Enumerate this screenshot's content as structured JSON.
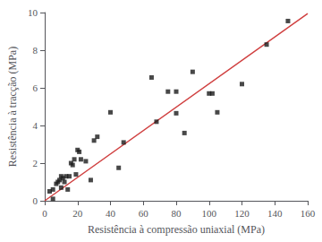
{
  "chart_data": {
    "type": "scatter",
    "xlabel": "Resistência à compressão uniaxial (MPa)",
    "ylabel": "Resistência à tracção (MPa)",
    "series": [
      {
        "type": "scatter",
        "marker": "square",
        "color": "#1a1a1a",
        "x": [
          3,
          5,
          5,
          7,
          8,
          9,
          10,
          10,
          11,
          12,
          13,
          14,
          15,
          16,
          17,
          18,
          19,
          20,
          21,
          22,
          25,
          28,
          30,
          32,
          40,
          45,
          48,
          65,
          68,
          75,
          80,
          80,
          85,
          90,
          100,
          102,
          105,
          120,
          135,
          148
        ],
        "values": [
          0.5,
          0.6,
          0.1,
          0.9,
          1.0,
          1.1,
          0.7,
          1.3,
          1.2,
          1.0,
          1.3,
          0.6,
          1.3,
          2.0,
          1.9,
          2.2,
          1.4,
          2.7,
          2.6,
          2.2,
          2.1,
          1.1,
          3.2,
          3.4,
          4.7,
          1.75,
          3.1,
          6.55,
          4.2,
          5.8,
          4.65,
          5.8,
          3.6,
          6.85,
          5.7,
          5.7,
          4.7,
          6.2,
          8.3,
          9.55
        ]
      },
      {
        "type": "line",
        "color": "#d04040",
        "x": [
          0,
          160
        ],
        "values": [
          0,
          9.95
        ]
      }
    ],
    "xlim": [
      0,
      160
    ],
    "xticks": [
      0,
      20,
      40,
      60,
      80,
      100,
      120,
      140,
      160
    ],
    "ylim": [
      0,
      10
    ],
    "yticks": [
      0,
      2,
      4,
      6,
      8,
      10
    ],
    "grid": false
  }
}
